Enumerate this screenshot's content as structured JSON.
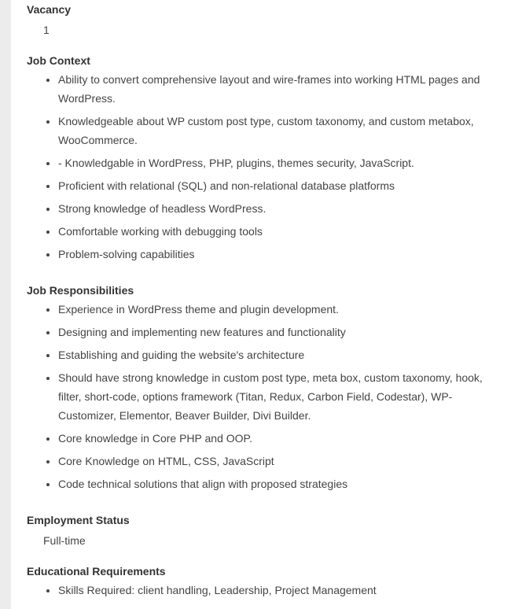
{
  "vacancy": {
    "title": "Vacancy",
    "value": "1"
  },
  "job_context": {
    "title": "Job Context",
    "items": [
      "Ability to convert comprehensive layout and wire-frames into working HTML pages and WordPress.",
      "Knowledgeable about WP custom post type, custom taxonomy, and custom metabox, WooCommerce.",
      "- Knowledgable in WordPress, PHP, plugins, themes security, JavaScript.",
      "Proficient with relational (SQL) and non-relational database platforms",
      "Strong knowledge of headless WordPress.",
      "Comfortable working with debugging tools",
      "Problem-solving capabilities"
    ]
  },
  "job_responsibilities": {
    "title": "Job Responsibilities",
    "items": [
      "Experience in WordPress theme and plugin development.",
      "Designing and implementing new features and functionality",
      "Establishing and guiding the website's architecture",
      "Should have strong knowledge in custom post type, meta box, custom taxonomy, hook, filter, short-code, options framework (Titan, Redux, Carbon Field, Codestar), WP-Customizer, Elementor, Beaver Builder, Divi Builder.",
      "Core knowledge in Core PHP and OOP.",
      "Core Knowledge on HTML, CSS, JavaScript",
      "Code technical solutions that align with proposed strategies"
    ]
  },
  "employment_status": {
    "title": "Employment Status",
    "value": "Full-time"
  },
  "educational_requirements": {
    "title": "Educational Requirements",
    "items": [
      "Skills Required: client handling, Leadership, Project Management"
    ]
  }
}
